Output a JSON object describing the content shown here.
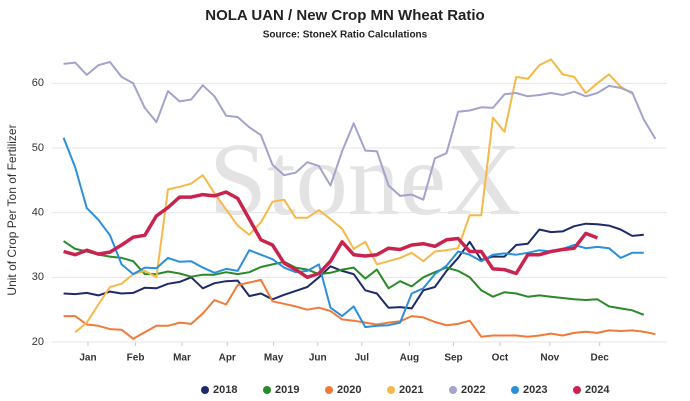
{
  "chart_data": {
    "type": "line",
    "title": "NOLA UAN / New Crop MN Wheat Ratio",
    "subtitle": "Source: StoneX Ratio Calculations",
    "watermark": "StoneX",
    "y_label": "Unit of Crop Per Ton of Fertilizer",
    "x": [
      1,
      2,
      3,
      4,
      5,
      6,
      7,
      8,
      9,
      10,
      11,
      12,
      13,
      14,
      15,
      16,
      17,
      18,
      19,
      20,
      21,
      22,
      23,
      24,
      25,
      26,
      27,
      28,
      29,
      30,
      31,
      32,
      33,
      34,
      35,
      36,
      37,
      38,
      39,
      40,
      41,
      42,
      43,
      44,
      45,
      46,
      47,
      48,
      49,
      50,
      51,
      52
    ],
    "xlim": [
      0,
      53
    ],
    "xticks": [
      {
        "value": 3.1,
        "label": "Jan"
      },
      {
        "value": 7.2,
        "label": "Feb"
      },
      {
        "value": 11.2,
        "label": "Mar"
      },
      {
        "value": 15.1,
        "label": "Apr"
      },
      {
        "value": 19.1,
        "label": "May"
      },
      {
        "value": 22.9,
        "label": "Jun"
      },
      {
        "value": 26.7,
        "label": "Jul"
      },
      {
        "value": 30.8,
        "label": "Aug"
      },
      {
        "value": 34.6,
        "label": "Sep"
      },
      {
        "value": 38.6,
        "label": "Oct"
      },
      {
        "value": 42.9,
        "label": "Nov"
      },
      {
        "value": 47.2,
        "label": "Dec"
      }
    ],
    "ylim": [
      20,
      65
    ],
    "yticks": [
      20,
      30,
      40,
      50,
      60
    ],
    "grid": true,
    "legend": "bottom",
    "series": [
      {
        "name": "2018",
        "color": "#1f2a6b",
        "values": [
          27.5,
          27.4,
          27.6,
          27.2,
          27.8,
          27.5,
          27.6,
          28.4,
          28.3,
          29,
          29.3,
          30,
          28.3,
          29.1,
          29.4,
          29.5,
          27.1,
          27.5,
          26.6,
          27.3,
          27.9,
          28.5,
          30,
          31.7,
          31,
          30.5,
          28,
          27.5,
          25.3,
          25.4,
          25.2,
          28,
          28.5,
          31,
          33,
          35.5,
          32.7,
          33.2,
          33.2,
          35,
          35.2,
          37.4,
          37,
          37.1,
          37.9,
          38.3,
          38.2,
          38,
          37.4,
          36.4,
          36.6,
          null
        ]
      },
      {
        "name": "2019",
        "color": "#2a8a2a",
        "values": [
          35.6,
          34.4,
          34,
          33.5,
          33.2,
          33,
          32.5,
          30.5,
          30.5,
          30.9,
          30.6,
          30.1,
          30.4,
          30.4,
          30.8,
          30.5,
          30.8,
          31.6,
          32,
          32.4,
          31.5,
          31.2,
          30.5,
          30.7,
          31.2,
          31.5,
          29.8,
          31.2,
          28.3,
          29.4,
          28.6,
          30,
          30.8,
          31.5,
          31,
          30,
          28,
          27,
          27.7,
          27.5,
          27,
          27.2,
          27,
          26.8,
          26.6,
          26.5,
          26.6,
          25.5,
          25.2,
          24.9,
          24.2,
          null
        ]
      },
      {
        "name": "2020",
        "color": "#f07a3a",
        "values": [
          24,
          24,
          22.7,
          22.5,
          22,
          21.9,
          20.5,
          21.5,
          22.5,
          22.5,
          23,
          22.8,
          24.4,
          26.5,
          25.8,
          28.8,
          29.2,
          29.6,
          26.3,
          25.9,
          25.5,
          25,
          25.3,
          24.8,
          23.5,
          23.3,
          23,
          22.7,
          23,
          23.2,
          24,
          23.8,
          23.1,
          22.6,
          22.8,
          23.3,
          20.8,
          21,
          21,
          21,
          20.8,
          21,
          21.3,
          21,
          21.4,
          21.6,
          21.4,
          21.8,
          21.7,
          21.8,
          21.6,
          21.2
        ]
      },
      {
        "name": "2021",
        "color": "#f5b94a",
        "values": [
          null,
          21.5,
          23,
          25.8,
          28.5,
          29,
          30.5,
          31,
          30,
          43.6,
          44,
          44.5,
          45.8,
          43,
          40.5,
          38,
          36.6,
          38.5,
          41.7,
          42,
          39.2,
          39.2,
          40.4,
          39,
          37.5,
          34.4,
          35.5,
          32,
          32.5,
          33,
          33.8,
          32.5,
          34,
          34.2,
          34.5,
          39.6,
          39.6,
          54.7,
          52.5,
          61,
          60.7,
          62.8,
          63.7,
          61.4,
          61,
          58.5,
          60,
          61.4,
          59.5,
          58.4,
          null,
          null
        ]
      },
      {
        "name": "2022",
        "color": "#a3a3cc",
        "values": [
          63,
          63.2,
          61.3,
          62.8,
          63.3,
          61,
          60,
          56.2,
          54,
          58.8,
          57.2,
          57.5,
          59.7,
          58,
          55,
          54.8,
          53.2,
          52,
          47.4,
          45.8,
          46.2,
          47.8,
          47.2,
          44.2,
          49.5,
          53.8,
          49.6,
          49.5,
          44.2,
          42.6,
          42.8,
          42,
          48.4,
          49.2,
          55.6,
          55.8,
          56.3,
          56.2,
          58.3,
          58.5,
          58,
          58.2,
          58.5,
          58.2,
          58.7,
          58,
          58.5,
          59.6,
          59.3,
          58.6,
          54.4,
          51.4
        ]
      },
      {
        "name": "2023",
        "color": "#2b8fdc",
        "values": [
          51.6,
          47,
          40.7,
          38.9,
          36.5,
          32,
          30.5,
          31.5,
          31.4,
          33,
          32.4,
          32.5,
          31.5,
          30.7,
          31.3,
          31,
          34.2,
          33.5,
          32.8,
          31.5,
          30.8,
          31,
          32,
          25.3,
          24,
          25.5,
          22.3,
          22.5,
          22.6,
          23,
          27.5,
          28.3,
          30.5,
          31.8,
          34,
          33.5,
          32.5,
          33.5,
          33.7,
          33.5,
          33.8,
          34.2,
          34,
          34.4,
          35,
          34.5,
          34.7,
          34.5,
          33,
          33.8,
          33.8,
          null
        ]
      },
      {
        "name": "2024",
        "color": "#c8244f",
        "width": 3.5,
        "values": [
          34,
          33.5,
          34.2,
          33.6,
          33.9,
          35,
          36.2,
          36.5,
          39.5,
          40.8,
          42.4,
          42.4,
          42.8,
          42.6,
          43.2,
          42.2,
          39,
          35.8,
          35,
          32.2,
          31.2,
          30,
          30.6,
          32.5,
          35.5,
          33.5,
          33.3,
          33.5,
          34.5,
          34.3,
          35,
          35.2,
          34.8,
          35.8,
          36,
          34,
          34,
          31.3,
          31.2,
          30.6,
          33.5,
          33.5,
          34,
          34.3,
          34.5,
          36.8,
          36.1,
          null,
          null,
          null,
          null,
          null
        ]
      }
    ]
  }
}
